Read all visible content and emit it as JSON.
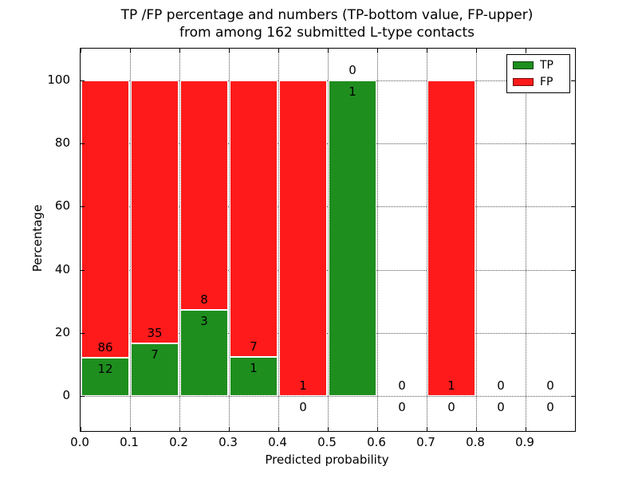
{
  "figure": {
    "title_line1": "TP /FP percentage and numbers (TP-bottom value, FP-upper)",
    "title_line2": "from among 162 submitted L-type contacts"
  },
  "chart_data": {
    "type": "bar",
    "stacked": true,
    "normalized": "percent_of_bin_total",
    "title": "TP /FP percentage and numbers (TP-bottom value, FP-upper)\nfrom among 162 submitted L-type contacts",
    "xlabel": "Predicted probability",
    "ylabel": "Percentage",
    "total_contacts": 162,
    "xlim": [
      0.0,
      1.0
    ],
    "ylim": [
      -11,
      110
    ],
    "grid": true,
    "grid_style": "dotted",
    "x_tick_values": [
      0.0,
      0.1,
      0.2,
      0.3,
      0.4,
      0.5,
      0.6,
      0.7,
      0.8,
      0.9
    ],
    "x_tick_labels": [
      "0.0",
      "0.1",
      "0.2",
      "0.3",
      "0.4",
      "0.5",
      "0.6",
      "0.7",
      "0.8",
      "0.9"
    ],
    "y_tick_values": [
      0,
      20,
      40,
      60,
      80,
      100
    ],
    "y_tick_labels": [
      "0",
      "20",
      "40",
      "60",
      "80",
      "100"
    ],
    "series": [
      {
        "name": "TP",
        "color": "#1e8e1e",
        "position": "bottom"
      },
      {
        "name": "FP",
        "color": "#fe1a1a",
        "position": "top"
      }
    ],
    "legend": {
      "position": "upper right",
      "entries": [
        {
          "label": "TP",
          "color": "#1e8e1e"
        },
        {
          "label": "FP",
          "color": "#fe1a1a"
        }
      ]
    },
    "bins": [
      {
        "x0": 0.0,
        "x1": 0.1,
        "tp": 12,
        "fp": 86,
        "tp_pct": 12.24,
        "fp_pct": 87.76
      },
      {
        "x0": 0.1,
        "x1": 0.2,
        "tp": 7,
        "fp": 35,
        "tp_pct": 16.67,
        "fp_pct": 83.33
      },
      {
        "x0": 0.2,
        "x1": 0.3,
        "tp": 3,
        "fp": 8,
        "tp_pct": 27.27,
        "fp_pct": 72.73
      },
      {
        "x0": 0.3,
        "x1": 0.4,
        "tp": 1,
        "fp": 7,
        "tp_pct": 12.5,
        "fp_pct": 87.5
      },
      {
        "x0": 0.4,
        "x1": 0.5,
        "tp": 0,
        "fp": 1,
        "tp_pct": 0,
        "fp_pct": 100
      },
      {
        "x0": 0.5,
        "x1": 0.6,
        "tp": 1,
        "fp": 0,
        "tp_pct": 100,
        "fp_pct": 0
      },
      {
        "x0": 0.6,
        "x1": 0.7,
        "tp": 0,
        "fp": 0,
        "tp_pct": 0,
        "fp_pct": 0
      },
      {
        "x0": 0.7,
        "x1": 0.8,
        "tp": 0,
        "fp": 1,
        "tp_pct": 0,
        "fp_pct": 100
      },
      {
        "x0": 0.8,
        "x1": 0.9,
        "tp": 0,
        "fp": 0,
        "tp_pct": 0,
        "fp_pct": 0
      },
      {
        "x0": 0.9,
        "x1": 1.0,
        "tp": 0,
        "fp": 0,
        "tp_pct": 0,
        "fp_pct": 0
      }
    ]
  }
}
